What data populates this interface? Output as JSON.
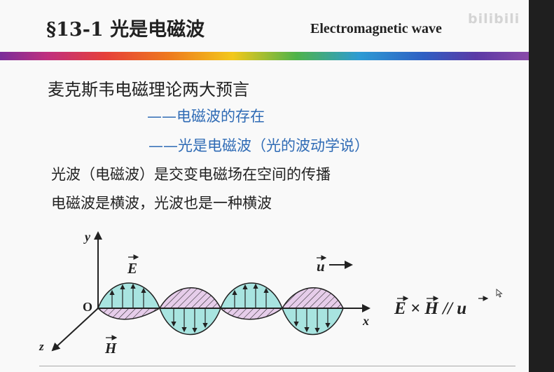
{
  "slide": {
    "title": "§13-1 光是电磁波",
    "subtitle": "Electromagnetic wave",
    "watermark": "bilibili",
    "heading": "麦克斯韦电磁理论两大预言",
    "predictions": [
      "——电磁波的存在",
      "——光是电磁波（光的波动学说）"
    ],
    "statements": [
      "光波（电磁波）是交变电磁场在空间的传播",
      "电磁波是横波，光波也是一种横波"
    ]
  },
  "diagram": {
    "axis_y": "y",
    "axis_x": "x",
    "axis_z": "z",
    "origin": "O",
    "e_label": "E",
    "h_label": "H",
    "u_label": "u",
    "formula": "E × H  //  u",
    "colors": {
      "e_field": "#a8e4e0",
      "h_field": "#e6cdea",
      "outline": "#222222"
    }
  },
  "icons": {
    "cursor": "mouse-pointer-icon"
  }
}
